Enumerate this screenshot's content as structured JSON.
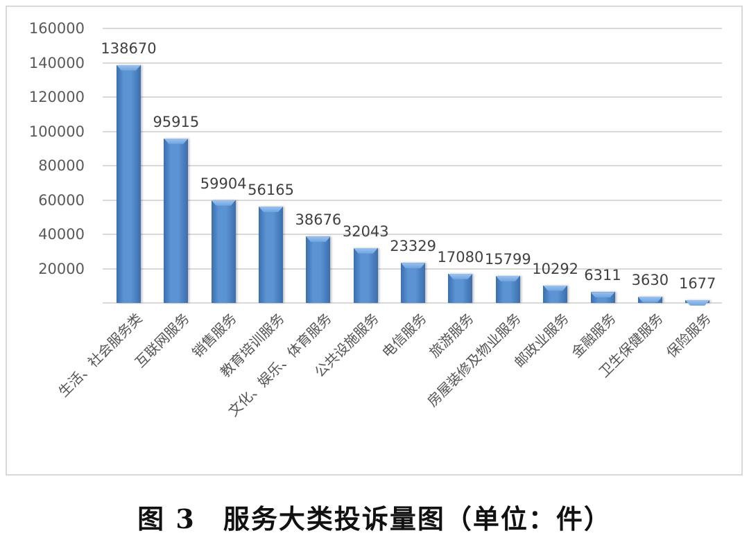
{
  "chart_data": {
    "type": "bar",
    "title": "",
    "xlabel": "",
    "ylabel": "",
    "ylim": [
      0,
      160000
    ],
    "y_ticks": [
      "20000",
      "40000",
      "60000",
      "80000",
      "100000",
      "120000",
      "140000",
      "160000"
    ],
    "grid": true,
    "legend": null,
    "categories": [
      "生活、社会服务类",
      "互联网服务",
      "销售服务",
      "教育培训服务",
      "文化、娱乐、体育服务",
      "公共设施服务",
      "电信服务",
      "旅游服务",
      "房屋装修及物业服务",
      "邮政业服务",
      "金融服务",
      "卫生保健服务",
      "保险服务"
    ],
    "values": [
      138670,
      95915,
      59904,
      56165,
      38676,
      32043,
      23329,
      17080,
      15799,
      10292,
      6311,
      3630,
      1677
    ],
    "value_labels": [
      "138670",
      "95915",
      "59904",
      "56165",
      "38676",
      "32043",
      "23329",
      "17080",
      "15799",
      "10292",
      "6311",
      "3630",
      "1677"
    ],
    "bar_color": "#4f81bd"
  },
  "caption": "图 3　服务大类投诉量图（单位：件）"
}
